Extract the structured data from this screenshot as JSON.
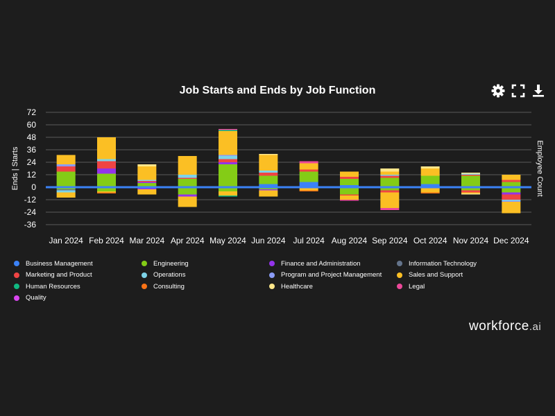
{
  "toolbar": {
    "settings_icon": "gear-icon",
    "expand_icon": "fullscreen-icon",
    "download_icon": "download-icon"
  },
  "brand": {
    "name": "workforce",
    "suffix": ".ai"
  },
  "chart_data": {
    "type": "bar",
    "stacked": true,
    "title": "Job Starts and Ends by Job Function",
    "ylabel": "Ends | Starts",
    "y2label": "Employee Count",
    "ylim": [
      -36,
      72
    ],
    "yticks": [
      72,
      60,
      48,
      36,
      24,
      12,
      0,
      -12,
      -24,
      -36
    ],
    "grid": true,
    "legend_position": "bottom",
    "categories": [
      "Jan 2024",
      "Feb 2024",
      "Mar 2024",
      "Apr 2024",
      "May 2024",
      "Jun 2024",
      "Jul 2024",
      "Aug 2024",
      "Sep 2024",
      "Oct 2024",
      "Nov 2024",
      "Dec 2024"
    ],
    "reference_line": {
      "name": "Employee Count",
      "value": 0,
      "color": "#3b82f6"
    },
    "series": [
      {
        "name": "Business Management",
        "color": "#3b82f6",
        "starts": [
          1,
          1,
          0,
          0,
          1,
          3,
          5,
          2,
          1,
          3,
          0,
          1
        ],
        "ends": [
          -1,
          0,
          0,
          0,
          0,
          0,
          0,
          0,
          0,
          0,
          0,
          -1
        ]
      },
      {
        "name": "Engineering",
        "color": "#84cc16",
        "starts": [
          14,
          12,
          4,
          8,
          21,
          8,
          10,
          6,
          8,
          8,
          11,
          4
        ],
        "ends": [
          -1,
          -4,
          -1,
          -7,
          -4,
          -2,
          0,
          -7,
          -3,
          0,
          -3,
          -4
        ]
      },
      {
        "name": "Finance and Administration",
        "color": "#9333ea",
        "starts": [
          0,
          5,
          1,
          0,
          2,
          0,
          0,
          0,
          0,
          0,
          0,
          0
        ],
        "ends": [
          0,
          0,
          -1,
          -2,
          0,
          -1,
          0,
          0,
          0,
          0,
          0,
          -2
        ]
      },
      {
        "name": "Information Technology",
        "color": "#64748b",
        "starts": [
          0,
          0,
          0,
          0,
          0,
          0,
          0,
          0,
          0,
          0,
          0,
          0
        ],
        "ends": [
          -1,
          0,
          0,
          0,
          0,
          0,
          -1,
          0,
          0,
          0,
          0,
          0
        ]
      },
      {
        "name": "Marketing and Product",
        "color": "#ef4444",
        "starts": [
          5,
          7,
          1,
          1,
          3,
          3,
          2,
          2,
          2,
          0,
          1,
          2
        ],
        "ends": [
          0,
          0,
          0,
          0,
          0,
          0,
          0,
          -1,
          -2,
          0,
          -2,
          -5
        ]
      },
      {
        "name": "Operations",
        "color": "#7dd3e8",
        "starts": [
          0,
          2,
          1,
          3,
          3,
          2,
          0,
          0,
          1,
          0,
          1,
          0
        ],
        "ends": [
          -2,
          0,
          0,
          0,
          0,
          0,
          0,
          0,
          0,
          0,
          0,
          -1
        ]
      },
      {
        "name": "Program and Project Management",
        "color": "#8b9cf7",
        "starts": [
          2,
          0,
          0,
          0,
          1,
          0,
          0,
          0,
          0,
          0,
          0,
          0
        ],
        "ends": [
          0,
          0,
          0,
          0,
          0,
          0,
          0,
          0,
          0,
          0,
          0,
          -1
        ]
      },
      {
        "name": "Sales and Support",
        "color": "#fbbf24",
        "starts": [
          9,
          21,
          13,
          18,
          23,
          15,
          6,
          5,
          3,
          7,
          0,
          5
        ],
        "ends": [
          -5,
          -1,
          -5,
          -10,
          -4,
          -6,
          -2,
          -4,
          -15,
          -5,
          -1,
          -11
        ]
      },
      {
        "name": "Human Resources",
        "color": "#10b981",
        "starts": [
          0,
          0,
          0,
          0,
          1,
          0,
          0,
          0,
          0,
          0,
          0,
          0
        ],
        "ends": [
          0,
          0,
          0,
          0,
          -1,
          0,
          0,
          0,
          0,
          0,
          0,
          0
        ]
      },
      {
        "name": "Consulting",
        "color": "#f97316",
        "starts": [
          0,
          0,
          0,
          0,
          0,
          0,
          0,
          0,
          0,
          0,
          0,
          0
        ],
        "ends": [
          0,
          -1,
          0,
          0,
          0,
          0,
          -1,
          0,
          0,
          -1,
          0,
          0
        ]
      },
      {
        "name": "Healthcare",
        "color": "#fde68a",
        "starts": [
          0,
          0,
          2,
          0,
          0,
          1,
          0,
          0,
          3,
          2,
          1,
          0
        ],
        "ends": [
          0,
          0,
          0,
          0,
          0,
          0,
          0,
          0,
          0,
          0,
          -1,
          0
        ]
      },
      {
        "name": "Legal",
        "color": "#ec4899",
        "starts": [
          0,
          0,
          0,
          0,
          1,
          0,
          2,
          0,
          0,
          0,
          0,
          0
        ],
        "ends": [
          0,
          0,
          0,
          0,
          0,
          0,
          0,
          -1,
          -2,
          0,
          0,
          0
        ]
      },
      {
        "name": "Quality",
        "color": "#d946ef",
        "starts": [
          0,
          0,
          0,
          0,
          0,
          0,
          0,
          0,
          0,
          0,
          0,
          0
        ],
        "ends": [
          0,
          0,
          0,
          0,
          0,
          0,
          0,
          0,
          0,
          0,
          0,
          0
        ]
      }
    ]
  }
}
